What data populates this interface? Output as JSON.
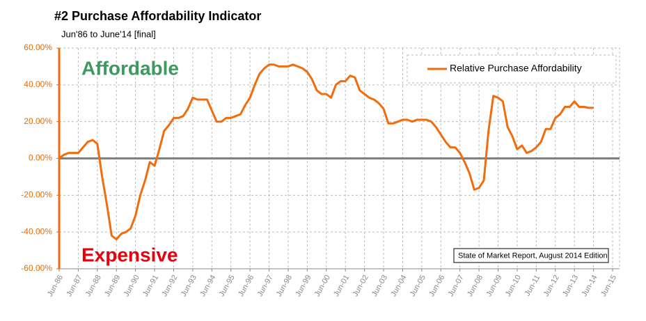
{
  "chart_data": {
    "type": "line",
    "title": "#2 Purchase Affordability Indicator",
    "subtitle": "Jun'86 to June'14 [final]",
    "annotations": [
      "Affordable",
      "Expensive",
      "State of Market Report, August 2014 Edition"
    ],
    "categories": [
      "Jun-86",
      null,
      null,
      null,
      "Jun-87",
      null,
      null,
      null,
      "Jun-88",
      null,
      null,
      null,
      "Jun-89",
      null,
      null,
      null,
      "Jun-90",
      null,
      null,
      null,
      "Jun-91",
      null,
      null,
      null,
      "Jun-92",
      null,
      null,
      null,
      "Jun-93",
      null,
      null,
      null,
      "Jun-94",
      null,
      null,
      null,
      "Jun-95",
      null,
      null,
      null,
      "Jun-96",
      null,
      null,
      null,
      "Jun-97",
      null,
      null,
      null,
      "Jun-98",
      null,
      null,
      null,
      "Jun-99",
      null,
      null,
      null,
      "Jun-00",
      null,
      null,
      null,
      "Jun-01",
      null,
      null,
      null,
      "Jun-02",
      null,
      null,
      null,
      "Jun-03",
      null,
      null,
      null,
      "Jun-04",
      null,
      null,
      null,
      "Jun-05",
      null,
      null,
      null,
      "Jun-06",
      null,
      null,
      null,
      "Jun-07",
      null,
      null,
      null,
      "Jun-08",
      null,
      null,
      null,
      "Jun-09",
      null,
      null,
      null,
      "Jun-10",
      null,
      null,
      null,
      "Jun-11",
      null,
      null,
      null,
      "Jun-12",
      null,
      null,
      null,
      "Jun-13",
      null,
      null,
      null,
      "Jun-14",
      null,
      null,
      null,
      "Jun-15"
    ],
    "series": [
      {
        "name": "Relative Purchase Affordability",
        "color": "#f26c0d",
        "values": [
          0,
          2,
          3,
          3,
          3,
          6,
          9,
          10,
          8,
          -10,
          -25,
          -42,
          -44,
          -41,
          -40,
          -38,
          -31,
          -20,
          -12,
          -2,
          -4,
          5,
          15,
          18,
          22,
          22,
          23,
          27,
          33,
          32,
          32,
          32,
          26,
          20,
          20,
          22,
          22,
          23,
          24,
          29,
          33,
          40,
          46,
          49,
          51,
          51,
          50,
          50,
          50,
          51,
          50,
          49,
          47,
          43,
          37,
          35,
          35,
          33,
          40,
          42,
          42,
          45,
          44,
          37,
          35,
          33,
          32,
          30,
          27,
          19,
          19,
          20,
          21,
          21,
          20,
          21,
          21,
          21,
          20,
          17,
          13,
          9,
          6,
          6,
          3,
          -2,
          -8,
          -17,
          -16,
          -12,
          15,
          34,
          33,
          31,
          17,
          12,
          5,
          7,
          3,
          4,
          6,
          9,
          16,
          16,
          22,
          24,
          28,
          28,
          31,
          28,
          28,
          27.5,
          27.5,
          null,
          null,
          null,
          null
        ]
      }
    ],
    "ylim": [
      -60,
      60
    ],
    "yticks": [
      {
        "value": -60,
        "label": "-60.00%"
      },
      {
        "value": -40,
        "label": "-40.00%"
      },
      {
        "value": -20,
        "label": "-20.00%"
      },
      {
        "value": 0,
        "label": "0.00%"
      },
      {
        "value": 20,
        "label": "20.00%"
      },
      {
        "value": 40,
        "label": "40.00%"
      },
      {
        "value": 60,
        "label": "60.00%"
      }
    ],
    "grid": true,
    "legend": "upper right"
  }
}
